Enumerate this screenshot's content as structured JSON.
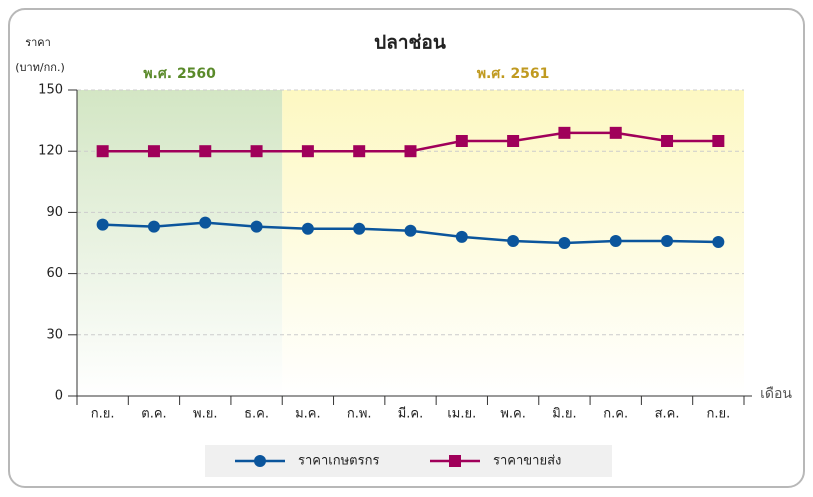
{
  "chart_data": {
    "type": "line",
    "title": "ปลาช่อน",
    "y_label": [
      "ราคา",
      "(บาท/กก.)"
    ],
    "x_label": "เดือน",
    "annotations": [
      "พ.ศ. 2560",
      "พ.ศ. 2561"
    ],
    "categories": [
      "ก.ย.",
      "ต.ค.",
      "พ.ย.",
      "ธ.ค.",
      "ม.ค.",
      "ก.พ.",
      "มี.ค.",
      "เม.ย.",
      "พ.ค.",
      "มิ.ย.",
      "ก.ค.",
      "ส.ค.",
      "ก.ย."
    ],
    "series": [
      {
        "name": "ราคาเกษตรกร",
        "color": "#0b559c",
        "marker": "circle",
        "values": [
          84,
          83,
          85,
          83,
          82,
          82,
          81,
          78,
          76,
          75,
          76,
          76,
          75.5
        ]
      },
      {
        "name": "ราคาขายส่ง",
        "color": "#a0005a",
        "marker": "square",
        "values": [
          120,
          120,
          120,
          120,
          120,
          120,
          120,
          125,
          125,
          129,
          129,
          125,
          125
        ]
      }
    ],
    "ylim": [
      0,
      150
    ],
    "yticks": [
      0,
      30,
      60,
      90,
      120,
      150
    ],
    "grid": true
  }
}
